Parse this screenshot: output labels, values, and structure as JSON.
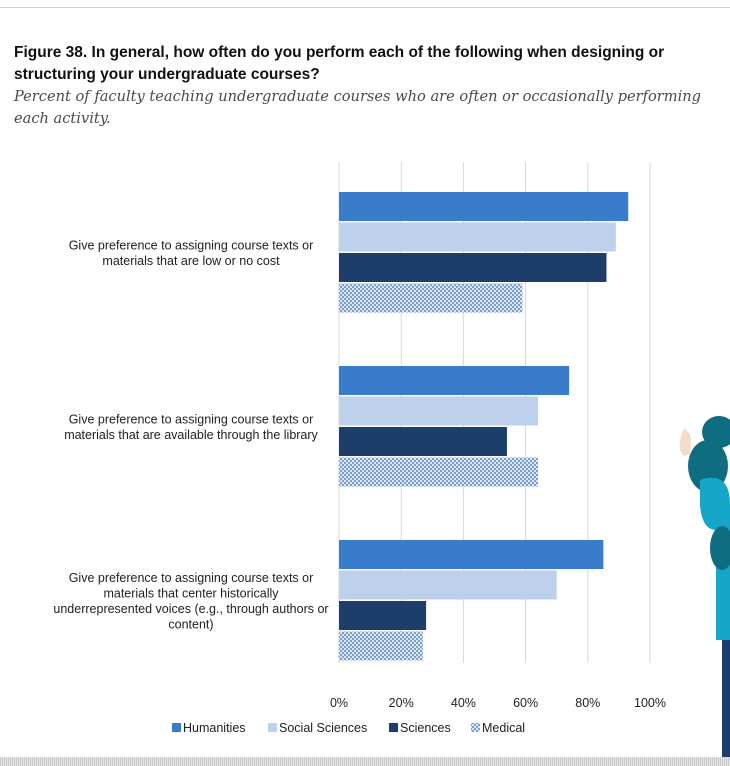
{
  "header": {
    "title": "Figure 38. In general, how often do you perform each of the following when designing or structuring your undergraduate courses?",
    "subtitle": "Percent of faculty teaching undergraduate courses who are often or occasionally performing each activity."
  },
  "colors": {
    "humanities": "#3a7ccc",
    "social_sciences": "#bdd0ec",
    "sciences": "#1d3d6b",
    "medical_pattern_dark": "#7d9fd0",
    "medical_pattern_light": "#dbe6f5",
    "gridline": "#d9d9d9"
  },
  "chart_data": {
    "type": "bar",
    "orientation": "horizontal",
    "categories": [
      [
        "Give preference to assigning course texts or",
        "materials that are low or no cost"
      ],
      [
        "Give preference to assigning course texts or",
        "materials that are available through the library"
      ],
      [
        "Give preference to assigning course texts or",
        "materials that center historically",
        "underrepresented voices (e.g., through authors or",
        "content)"
      ]
    ],
    "series": [
      {
        "name": "Humanities",
        "values": [
          93,
          74,
          85
        ]
      },
      {
        "name": "Social Sciences",
        "values": [
          89,
          64,
          70
        ]
      },
      {
        "name": "Sciences",
        "values": [
          86,
          54,
          28
        ]
      },
      {
        "name": "Medical",
        "values": [
          59,
          64,
          27
        ]
      }
    ],
    "xlim": [
      0,
      100
    ],
    "xticks": [
      "0%",
      "20%",
      "40%",
      "60%",
      "80%",
      "100%"
    ],
    "grid": true,
    "legend": "bottom"
  }
}
